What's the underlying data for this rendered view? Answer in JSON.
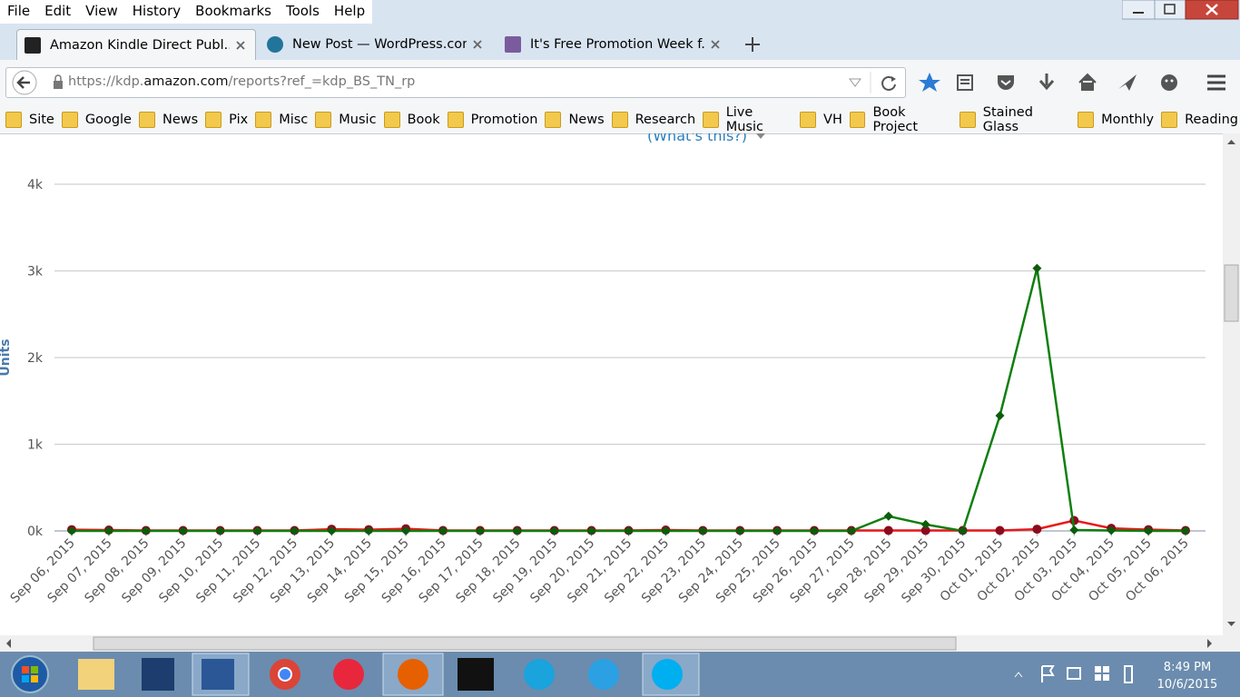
{
  "menu": [
    "File",
    "Edit",
    "View",
    "History",
    "Bookmarks",
    "Tools",
    "Help"
  ],
  "tabs": [
    "Amazon Kindle Direct Publ...",
    "New Post — WordPress.com",
    "It's Free Promotion Week f..."
  ],
  "url": {
    "scheme": "https://kdp.",
    "domain": "amazon.com",
    "path": "/reports?ref_=kdp_BS_TN_rp"
  },
  "bookmarks": [
    "Site",
    "Google",
    "News",
    "Pix",
    "Misc",
    "Music",
    "Book",
    "Promotion",
    "News",
    "Research",
    "Live Music",
    "VH",
    "Book Project",
    "Stained Glass",
    "Monthly",
    "Reading"
  ],
  "whats_this": "(What's this?)",
  "chart_data": {
    "type": "line",
    "y_label": "Units",
    "categories": [
      "Sep 06, 2015",
      "Sep 07, 2015",
      "Sep 08, 2015",
      "Sep 09, 2015",
      "Sep 10, 2015",
      "Sep 11, 2015",
      "Sep 12, 2015",
      "Sep 13, 2015",
      "Sep 14, 2015",
      "Sep 15, 2015",
      "Sep 16, 2015",
      "Sep 17, 2015",
      "Sep 18, 2015",
      "Sep 19, 2015",
      "Sep 20, 2015",
      "Sep 21, 2015",
      "Sep 22, 2015",
      "Sep 23, 2015",
      "Sep 24, 2015",
      "Sep 25, 2015",
      "Sep 26, 2015",
      "Sep 27, 2015",
      "Sep 28, 2015",
      "Sep 29, 2015",
      "Sep 30, 2015",
      "Oct 01, 2015",
      "Oct 02, 2015",
      "Oct 03, 2015",
      "Oct 04, 2015",
      "Oct 05, 2015",
      "Oct 06, 2015"
    ],
    "series": [
      {
        "color": "#e8191b",
        "marker_color": "#8b0a1e",
        "marker": "circle",
        "values": [
          15,
          10,
          5,
          5,
          5,
          5,
          5,
          20,
          15,
          25,
          5,
          5,
          5,
          5,
          5,
          5,
          10,
          5,
          5,
          5,
          5,
          5,
          5,
          5,
          5,
          5,
          20,
          120,
          30,
          15,
          5
        ]
      },
      {
        "color": "#0f7f0f",
        "marker_color": "#0b5d0b",
        "marker": "diamond",
        "values": [
          0,
          0,
          0,
          0,
          0,
          0,
          0,
          0,
          0,
          0,
          0,
          0,
          0,
          0,
          0,
          0,
          0,
          0,
          0,
          0,
          0,
          0,
          170,
          75,
          0,
          1330,
          3030,
          10,
          5,
          0,
          0
        ]
      }
    ],
    "ylim": [
      0,
      4000
    ],
    "yticks": [
      {
        "value": 0,
        "label": "0k"
      },
      {
        "value": 1000,
        "label": "1k"
      },
      {
        "value": 2000,
        "label": "2k"
      },
      {
        "value": 3000,
        "label": "3k"
      },
      {
        "value": 4000,
        "label": "4k"
      }
    ],
    "grid": true
  },
  "clock": {
    "time": "8:49 PM",
    "date": "10/6/2015"
  }
}
